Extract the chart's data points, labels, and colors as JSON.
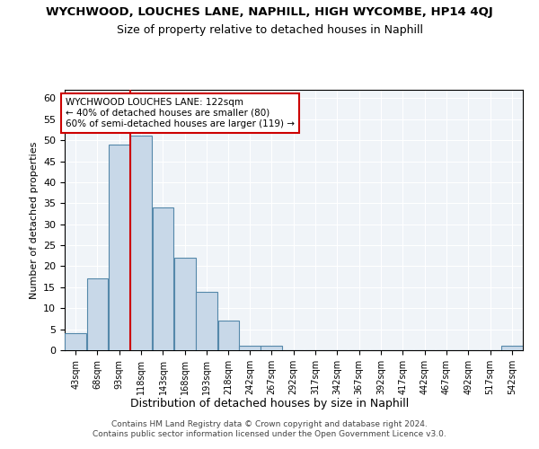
{
  "title": "WYCHWOOD, LOUCHES LANE, NAPHILL, HIGH WYCOMBE, HP14 4QJ",
  "subtitle": "Size of property relative to detached houses in Naphill",
  "xlabel": "Distribution of detached houses by size in Naphill",
  "ylabel": "Number of detached properties",
  "bar_color": "#c8d8e8",
  "bar_edge_color": "#5588aa",
  "background_color": "#f0f4f8",
  "grid_color": "#ffffff",
  "bins": [
    "43sqm",
    "68sqm",
    "93sqm",
    "118sqm",
    "143sqm",
    "168sqm",
    "193sqm",
    "218sqm",
    "242sqm",
    "267sqm",
    "292sqm",
    "317sqm",
    "342sqm",
    "367sqm",
    "392sqm",
    "417sqm",
    "442sqm",
    "467sqm",
    "492sqm",
    "517sqm",
    "542sqm"
  ],
  "bin_edges": [
    43,
    68,
    93,
    118,
    143,
    168,
    193,
    218,
    242,
    267,
    292,
    317,
    342,
    367,
    392,
    417,
    442,
    467,
    492,
    517,
    542
  ],
  "counts": [
    4,
    17,
    49,
    51,
    34,
    22,
    14,
    7,
    1,
    1,
    0,
    0,
    0,
    0,
    0,
    0,
    0,
    0,
    0,
    0,
    1
  ],
  "ylim": [
    0,
    62
  ],
  "yticks": [
    0,
    5,
    10,
    15,
    20,
    25,
    30,
    35,
    40,
    45,
    50,
    55,
    60
  ],
  "property_size": 122,
  "property_bin_edge": 118,
  "annotation_text": "WYCHWOOD LOUCHES LANE: 122sqm\n← 40% of detached houses are smaller (80)\n60% of semi-detached houses are larger (119) →",
  "vline_color": "#cc0000",
  "annotation_box_edge": "#cc0000",
  "footer_line1": "Contains HM Land Registry data © Crown copyright and database right 2024.",
  "footer_line2": "Contains public sector information licensed under the Open Government Licence v3.0."
}
